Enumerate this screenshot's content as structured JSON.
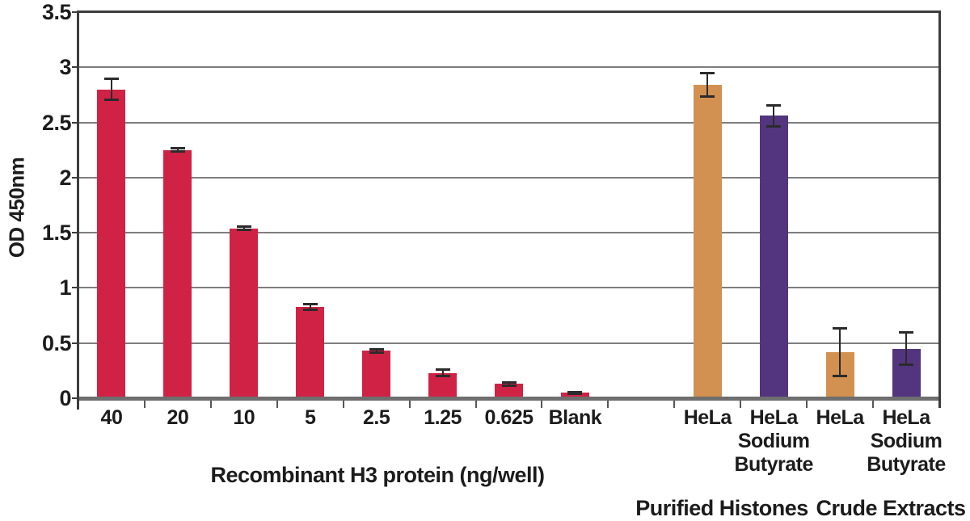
{
  "chart_data": {
    "type": "bar",
    "title": "",
    "ylabel": "OD 450nm",
    "xlabel": "Recombinant H3 protein (ng/well)",
    "group_labels": [
      {
        "text": "Purified Histones"
      },
      {
        "text": "Crude Extracts"
      }
    ],
    "ylim": [
      0,
      3.5
    ],
    "ytick_step": 0.5,
    "yticks": [
      "0",
      "0.5",
      "1",
      "1.5",
      "2",
      "2.5",
      "3",
      "3.5"
    ],
    "grid": true,
    "legend_position": "none",
    "slots": 13,
    "series_colors": {
      "standard": "#d02244",
      "hela": "#d29150",
      "hela_sodium_butyrate": "#52357e"
    },
    "frame_color": "#3c3c3c",
    "gridline_color": "#7e7e7e",
    "errorbar_color": "#2b2b2b",
    "bars": [
      {
        "slot": 0,
        "label": [
          "40"
        ],
        "value": 2.8,
        "error": 0.1,
        "series": "standard"
      },
      {
        "slot": 1,
        "label": [
          "20"
        ],
        "value": 2.25,
        "error": 0.02,
        "series": "standard"
      },
      {
        "slot": 2,
        "label": [
          "10"
        ],
        "value": 1.54,
        "error": 0.02,
        "series": "standard"
      },
      {
        "slot": 3,
        "label": [
          "5"
        ],
        "value": 0.83,
        "error": 0.03,
        "series": "standard"
      },
      {
        "slot": 4,
        "label": [
          "2.5"
        ],
        "value": 0.43,
        "error": 0.02,
        "series": "standard"
      },
      {
        "slot": 5,
        "label": [
          "1.25"
        ],
        "value": 0.23,
        "error": 0.03,
        "series": "standard"
      },
      {
        "slot": 6,
        "label": [
          "0.625"
        ],
        "value": 0.13,
        "error": 0.02,
        "series": "standard"
      },
      {
        "slot": 7,
        "label": [
          "Blank"
        ],
        "value": 0.05,
        "error": 0.01,
        "series": "standard"
      },
      {
        "slot": 9,
        "label": [
          "HeLa"
        ],
        "value": 2.84,
        "error": 0.11,
        "series": "hela"
      },
      {
        "slot": 10,
        "label": [
          "HeLa",
          "Sodium",
          "Butyrate"
        ],
        "value": 2.56,
        "error": 0.1,
        "series": "hela_sodium_butyrate"
      },
      {
        "slot": 11,
        "label": [
          "HeLa"
        ],
        "value": 0.42,
        "error": 0.22,
        "series": "hela"
      },
      {
        "slot": 12,
        "label": [
          "HeLa",
          "Sodium",
          "Butyrate"
        ],
        "value": 0.45,
        "error": 0.15,
        "series": "hela_sodium_butyrate"
      }
    ]
  }
}
